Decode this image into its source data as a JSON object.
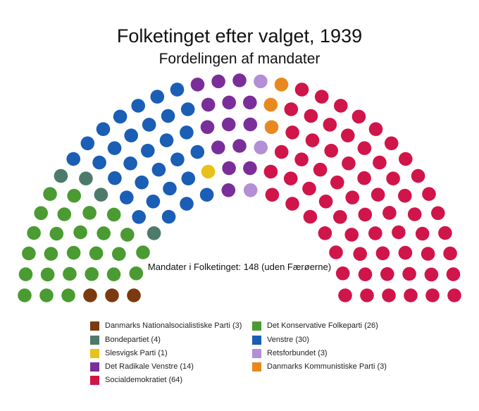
{
  "title": "Folketinget efter valget, 1939",
  "subtitle": "Fordelingen af mandater",
  "caption": "Mandater i Folketinget: 148 (uden Færøerne)",
  "chart_data": {
    "type": "parliament",
    "total_seats": 148,
    "parties": [
      {
        "name": "Danmarks Nationalsocialistiske Parti",
        "label": "Danmarks Nationalsocialistiske Parti (3)",
        "seats": 3,
        "color": "#7b3a10"
      },
      {
        "name": "Det Konservative Folkeparti",
        "label": "Det Konservative Folkeparti (26)",
        "seats": 26,
        "color": "#4a9b32"
      },
      {
        "name": "Bondepartiet",
        "label": "Bondepartiet (4)",
        "seats": 4,
        "color": "#4d7a6b"
      },
      {
        "name": "Venstre",
        "label": "Venstre (30)",
        "seats": 30,
        "color": "#1a5eb5"
      },
      {
        "name": "Slesvigsk Parti",
        "label": "Slesvigsk Parti (1)",
        "seats": 1,
        "color": "#e8c21a"
      },
      {
        "name": "Retsforbundet",
        "label": "Retsforbundet (3)",
        "seats": 3,
        "color": "#b38fd6"
      },
      {
        "name": "Det Radikale Venstre",
        "label": "Det Radikale Venstre (14)",
        "seats": 14,
        "color": "#7a2e9a"
      },
      {
        "name": "Danmarks Kommunistiske Parti",
        "label": "Danmarks Kommunistiske Parti (3)",
        "seats": 3,
        "color": "#e8891f"
      },
      {
        "name": "Socialdemokratiet",
        "label": "Socialdemokratiet (64)",
        "seats": 64,
        "color": "#d0154a"
      }
    ],
    "seat_order": [
      "Danmarks Nationalsocialistiske Parti",
      "Det Konservative Folkeparti",
      "Bondepartiet",
      "Venstre",
      "Slesvigsk Parti",
      "Det Radikale Venstre",
      "Retsforbundet",
      "Danmarks Kommunistiske Parti",
      "Socialdemokratiet"
    ]
  },
  "legend": {
    "left": [
      {
        "label": "Danmarks Nationalsocialistiske Parti (3)",
        "color": "#7b3a10"
      },
      {
        "label": "Bondepartiet (4)",
        "color": "#4d7a6b"
      },
      {
        "label": "Slesvigsk Parti (1)",
        "color": "#e8c21a"
      },
      {
        "label": "Det Radikale Venstre (14)",
        "color": "#7a2e9a"
      },
      {
        "label": "Socialdemokratiet (64)",
        "color": "#d0154a"
      }
    ],
    "right": [
      {
        "label": "Det Konservative Folkeparti (26)",
        "color": "#4a9b32"
      },
      {
        "label": "Venstre (30)",
        "color": "#1a5eb5"
      },
      {
        "label": "Retsforbundet (3)",
        "color": "#b38fd6"
      },
      {
        "label": "Danmarks Kommunistiske Parti (3)",
        "color": "#e8891f"
      }
    ]
  }
}
